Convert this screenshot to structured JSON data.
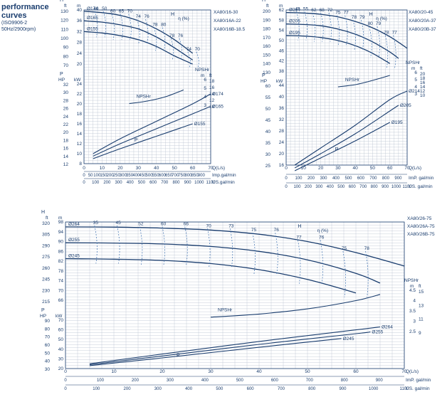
{
  "header": {
    "title_line1": "performance",
    "title_line2": "curves",
    "standard": "(ISO9906-2",
    "speed": "50Hz/2900rpm)"
  },
  "colors": {
    "curve": "#1a3d6e",
    "grid": "#b9c2cf",
    "dashed": "#3a6fb0"
  },
  "chart_data": [
    {
      "type": "line",
      "models": [
        "XA80/16-30",
        "XA80/16A-22",
        "XA80/16B-18.5"
      ],
      "axis_units": {
        "x": "Q(L/s)",
        "x_imp": "Imp.gal/min",
        "x_us": "US.gal/min",
        "head": [
          "ft",
          "m"
        ],
        "power": [
          "HP",
          "kW"
        ],
        "npsh": [
          "m",
          "ft"
        ],
        "npsh_label": "NPSHr",
        "eff_label": "η (%)",
        "h_label": "H",
        "p_label": "P"
      },
      "x_ticks": [
        0,
        10,
        20,
        30,
        40,
        50,
        60,
        70
      ],
      "imp_ticks": [
        0,
        50,
        100,
        150,
        200,
        250,
        300,
        350,
        400,
        450,
        500,
        550,
        600,
        650,
        700,
        750,
        800,
        850,
        900
      ],
      "us_ticks": [
        0,
        100,
        200,
        300,
        400,
        500,
        600,
        700,
        800,
        900,
        1000,
        1100
      ],
      "head_m_ticks": [
        40,
        36,
        32,
        28,
        24,
        20
      ],
      "head_ft_ticks": [
        130,
        120,
        110,
        100,
        90,
        80,
        70
      ],
      "power_kw_ticks": [
        24,
        22,
        20,
        18,
        16,
        14,
        12,
        10,
        8
      ],
      "power_hp_ticks": [
        32,
        30,
        28,
        26,
        24,
        22,
        20,
        18,
        16,
        14,
        12
      ],
      "npsh_m_ticks": [
        6,
        5,
        4,
        3
      ],
      "npsh_ft_ticks": [
        18,
        16,
        14,
        12,
        10
      ],
      "eff_labels": [
        "40",
        "50",
        "60",
        "65",
        "70",
        "74",
        "76",
        "78",
        "80",
        "78",
        "76",
        "74",
        "70"
      ],
      "series": [
        {
          "name": "Ø174",
          "head_x": [
            0,
            10,
            20,
            30,
            40,
            50,
            60
          ],
          "head_m": [
            39.5,
            39,
            38,
            36,
            33,
            29,
            24
          ],
          "power_x": [
            5,
            20,
            40,
            60,
            70
          ],
          "power_kw": [
            10,
            13,
            16.5,
            20,
            22
          ]
        },
        {
          "name": "Ø165",
          "head_x": [
            0,
            10,
            20,
            30,
            40,
            50,
            60
          ],
          "head_m": [
            36,
            35.5,
            34.5,
            33,
            30,
            26,
            21.5
          ],
          "power_x": [
            5,
            20,
            40,
            60,
            70
          ],
          "power_kw": [
            9.5,
            12,
            15,
            18,
            19.5
          ]
        },
        {
          "name": "Ø155",
          "head_x": [
            0,
            10,
            20,
            30,
            40,
            50,
            60
          ],
          "head_m": [
            32,
            31.5,
            30.5,
            29,
            26.5,
            23,
            20
          ],
          "power_x": [
            5,
            20,
            40,
            60
          ],
          "power_kw": [
            9,
            11,
            13.5,
            16
          ]
        }
      ],
      "npsh": {
        "x": [
          25,
          35,
          45,
          55
        ],
        "m": [
          3.2,
          3.5,
          4.0,
          4.8
        ]
      }
    },
    {
      "type": "line",
      "models": [
        "XA80/20-45",
        "XA80/20A-37",
        "XA80/20B-37"
      ],
      "axis_units": {
        "x": "Q(L/s)",
        "x_imp": "ImP. gal/min",
        "x_us": "US. gal/min",
        "head": [
          "ft",
          "m"
        ],
        "power": [
          "HP",
          "kW"
        ],
        "npsh": [
          "m",
          "ft"
        ],
        "npsh_label": "NPSHr",
        "eff_label": "η (%)",
        "h_label": "H",
        "p_label": "P"
      },
      "x_ticks": [
        0,
        10,
        20,
        30,
        40,
        50,
        60,
        70
      ],
      "imp_ticks": [
        0,
        100,
        200,
        300,
        400,
        500,
        600,
        700,
        800,
        900
      ],
      "us_ticks": [
        0,
        100,
        200,
        300,
        400,
        500,
        600,
        700,
        800,
        900,
        1000,
        1100
      ],
      "head_m_ticks": [
        62,
        58,
        54,
        50,
        46,
        42,
        38
      ],
      "head_ft_ticks": [
        200,
        190,
        180,
        170,
        160,
        150,
        140,
        130
      ],
      "power_kw_ticks": [
        44,
        40,
        36,
        32,
        28,
        24,
        20,
        16
      ],
      "power_hp_ticks": [
        60,
        55,
        50,
        45,
        40,
        35,
        30,
        25
      ],
      "npsh_m_ticks": [
        6,
        5,
        4,
        3
      ],
      "npsh_ft_ticks": [
        20,
        18,
        16,
        14,
        12,
        10
      ],
      "eff_labels": [
        "45",
        "55",
        "62",
        "68",
        "72",
        "75",
        "77",
        "78",
        "79",
        "80",
        "79",
        "78",
        "77"
      ],
      "series": [
        {
          "name": "Ø214",
          "head_x": [
            0,
            10,
            20,
            30,
            40,
            50,
            60,
            70
          ],
          "head_m": [
            61,
            60.8,
            60.3,
            59.3,
            57.5,
            55,
            51.5,
            47
          ],
          "power_x": [
            5,
            20,
            40,
            60,
            70
          ],
          "power_kw": [
            16,
            22,
            30,
            39,
            42
          ]
        },
        {
          "name": "Ø205",
          "head_x": [
            0,
            10,
            20,
            30,
            40,
            50,
            60,
            65
          ],
          "head_m": [
            56.5,
            56.3,
            55.8,
            54.5,
            52.5,
            49.5,
            45.5,
            43
          ],
          "power_x": [
            5,
            20,
            40,
            60,
            65
          ],
          "power_kw": [
            15,
            20,
            27,
            35,
            37
          ]
        },
        {
          "name": "Ø195",
          "head_x": [
            0,
            10,
            20,
            30,
            40,
            50,
            60
          ],
          "head_m": [
            52,
            51.8,
            51.2,
            50,
            48,
            45,
            41
          ],
          "power_x": [
            5,
            20,
            40,
            60
          ],
          "power_kw": [
            14,
            18.5,
            24.5,
            31
          ]
        }
      ],
      "npsh": {
        "x": [
          30,
          40,
          50,
          60
        ],
        "m": [
          4.0,
          4.3,
          4.9,
          5.6
        ]
      }
    },
    {
      "type": "line",
      "models": [
        "XA80/26-75",
        "XA80/26A-75",
        "XA80/26B-75"
      ],
      "axis_units": {
        "x": "Q(L/s)",
        "x_imp": "ImP. gal/min",
        "x_us": "US. gal/min",
        "head": [
          "ft",
          "m"
        ],
        "power": [
          "HP",
          "kW"
        ],
        "npsh": [
          "m",
          "ft"
        ],
        "npsh_label": "NPSHr",
        "eff_label": "η (%)",
        "h_label": "H",
        "p_label": "P"
      },
      "x_ticks": [
        0,
        10,
        20,
        30,
        40,
        50,
        60,
        70
      ],
      "imp_ticks": [
        0,
        100,
        200,
        300,
        400,
        500,
        600,
        700,
        800,
        900
      ],
      "us_ticks": [
        0,
        100,
        200,
        300,
        400,
        500,
        600,
        700,
        800,
        900,
        1000,
        1100
      ],
      "head_m_ticks": [
        98,
        94,
        90,
        86,
        82,
        78,
        74,
        70,
        66
      ],
      "head_ft_ticks": [
        320,
        305,
        290,
        275,
        260,
        245,
        230,
        215
      ],
      "power_kw_ticks": [
        70,
        60,
        50,
        40,
        30,
        20
      ],
      "power_hp_ticks": [
        90,
        80,
        70,
        60,
        50,
        40,
        30
      ],
      "npsh_m_ticks": [
        4.5,
        4.0,
        3.5,
        3.0,
        2.5
      ],
      "npsh_ft_ticks": [
        15,
        13,
        11,
        9
      ],
      "eff_labels": [
        "35",
        "45",
        "52",
        "60",
        "66",
        "70",
        "73",
        "75",
        "76",
        "77",
        "76",
        "75",
        "78"
      ],
      "series": [
        {
          "name": "Ø264",
          "head_x": [
            0,
            10,
            20,
            30,
            40,
            50,
            60,
            70
          ],
          "head_m": [
            96,
            95.9,
            95.5,
            94.7,
            93,
            90,
            85.5,
            80
          ],
          "power_x": [
            5,
            20,
            40,
            60,
            65
          ],
          "power_kw": [
            25,
            35,
            48,
            60,
            63
          ]
        },
        {
          "name": "Ø255",
          "head_x": [
            0,
            10,
            20,
            30,
            40,
            50,
            60,
            65
          ],
          "head_m": [
            89.5,
            89.4,
            89,
            88,
            86,
            82.5,
            77,
            73
          ],
          "power_x": [
            5,
            20,
            40,
            60,
            63
          ],
          "power_kw": [
            24,
            33,
            45,
            56,
            58
          ]
        },
        {
          "name": "Ø245",
          "head_x": [
            0,
            10,
            20,
            30,
            40,
            50,
            60
          ],
          "head_m": [
            83,
            82.8,
            82.3,
            81,
            78.5,
            74.5,
            69
          ],
          "power_x": [
            5,
            20,
            40,
            57
          ],
          "power_kw": [
            23,
            31,
            42,
            51
          ]
        }
      ],
      "npsh": {
        "x": [
          30,
          40,
          50,
          60,
          65
        ],
        "m": [
          3.2,
          3.35,
          3.6,
          4.0,
          4.3
        ]
      }
    }
  ]
}
